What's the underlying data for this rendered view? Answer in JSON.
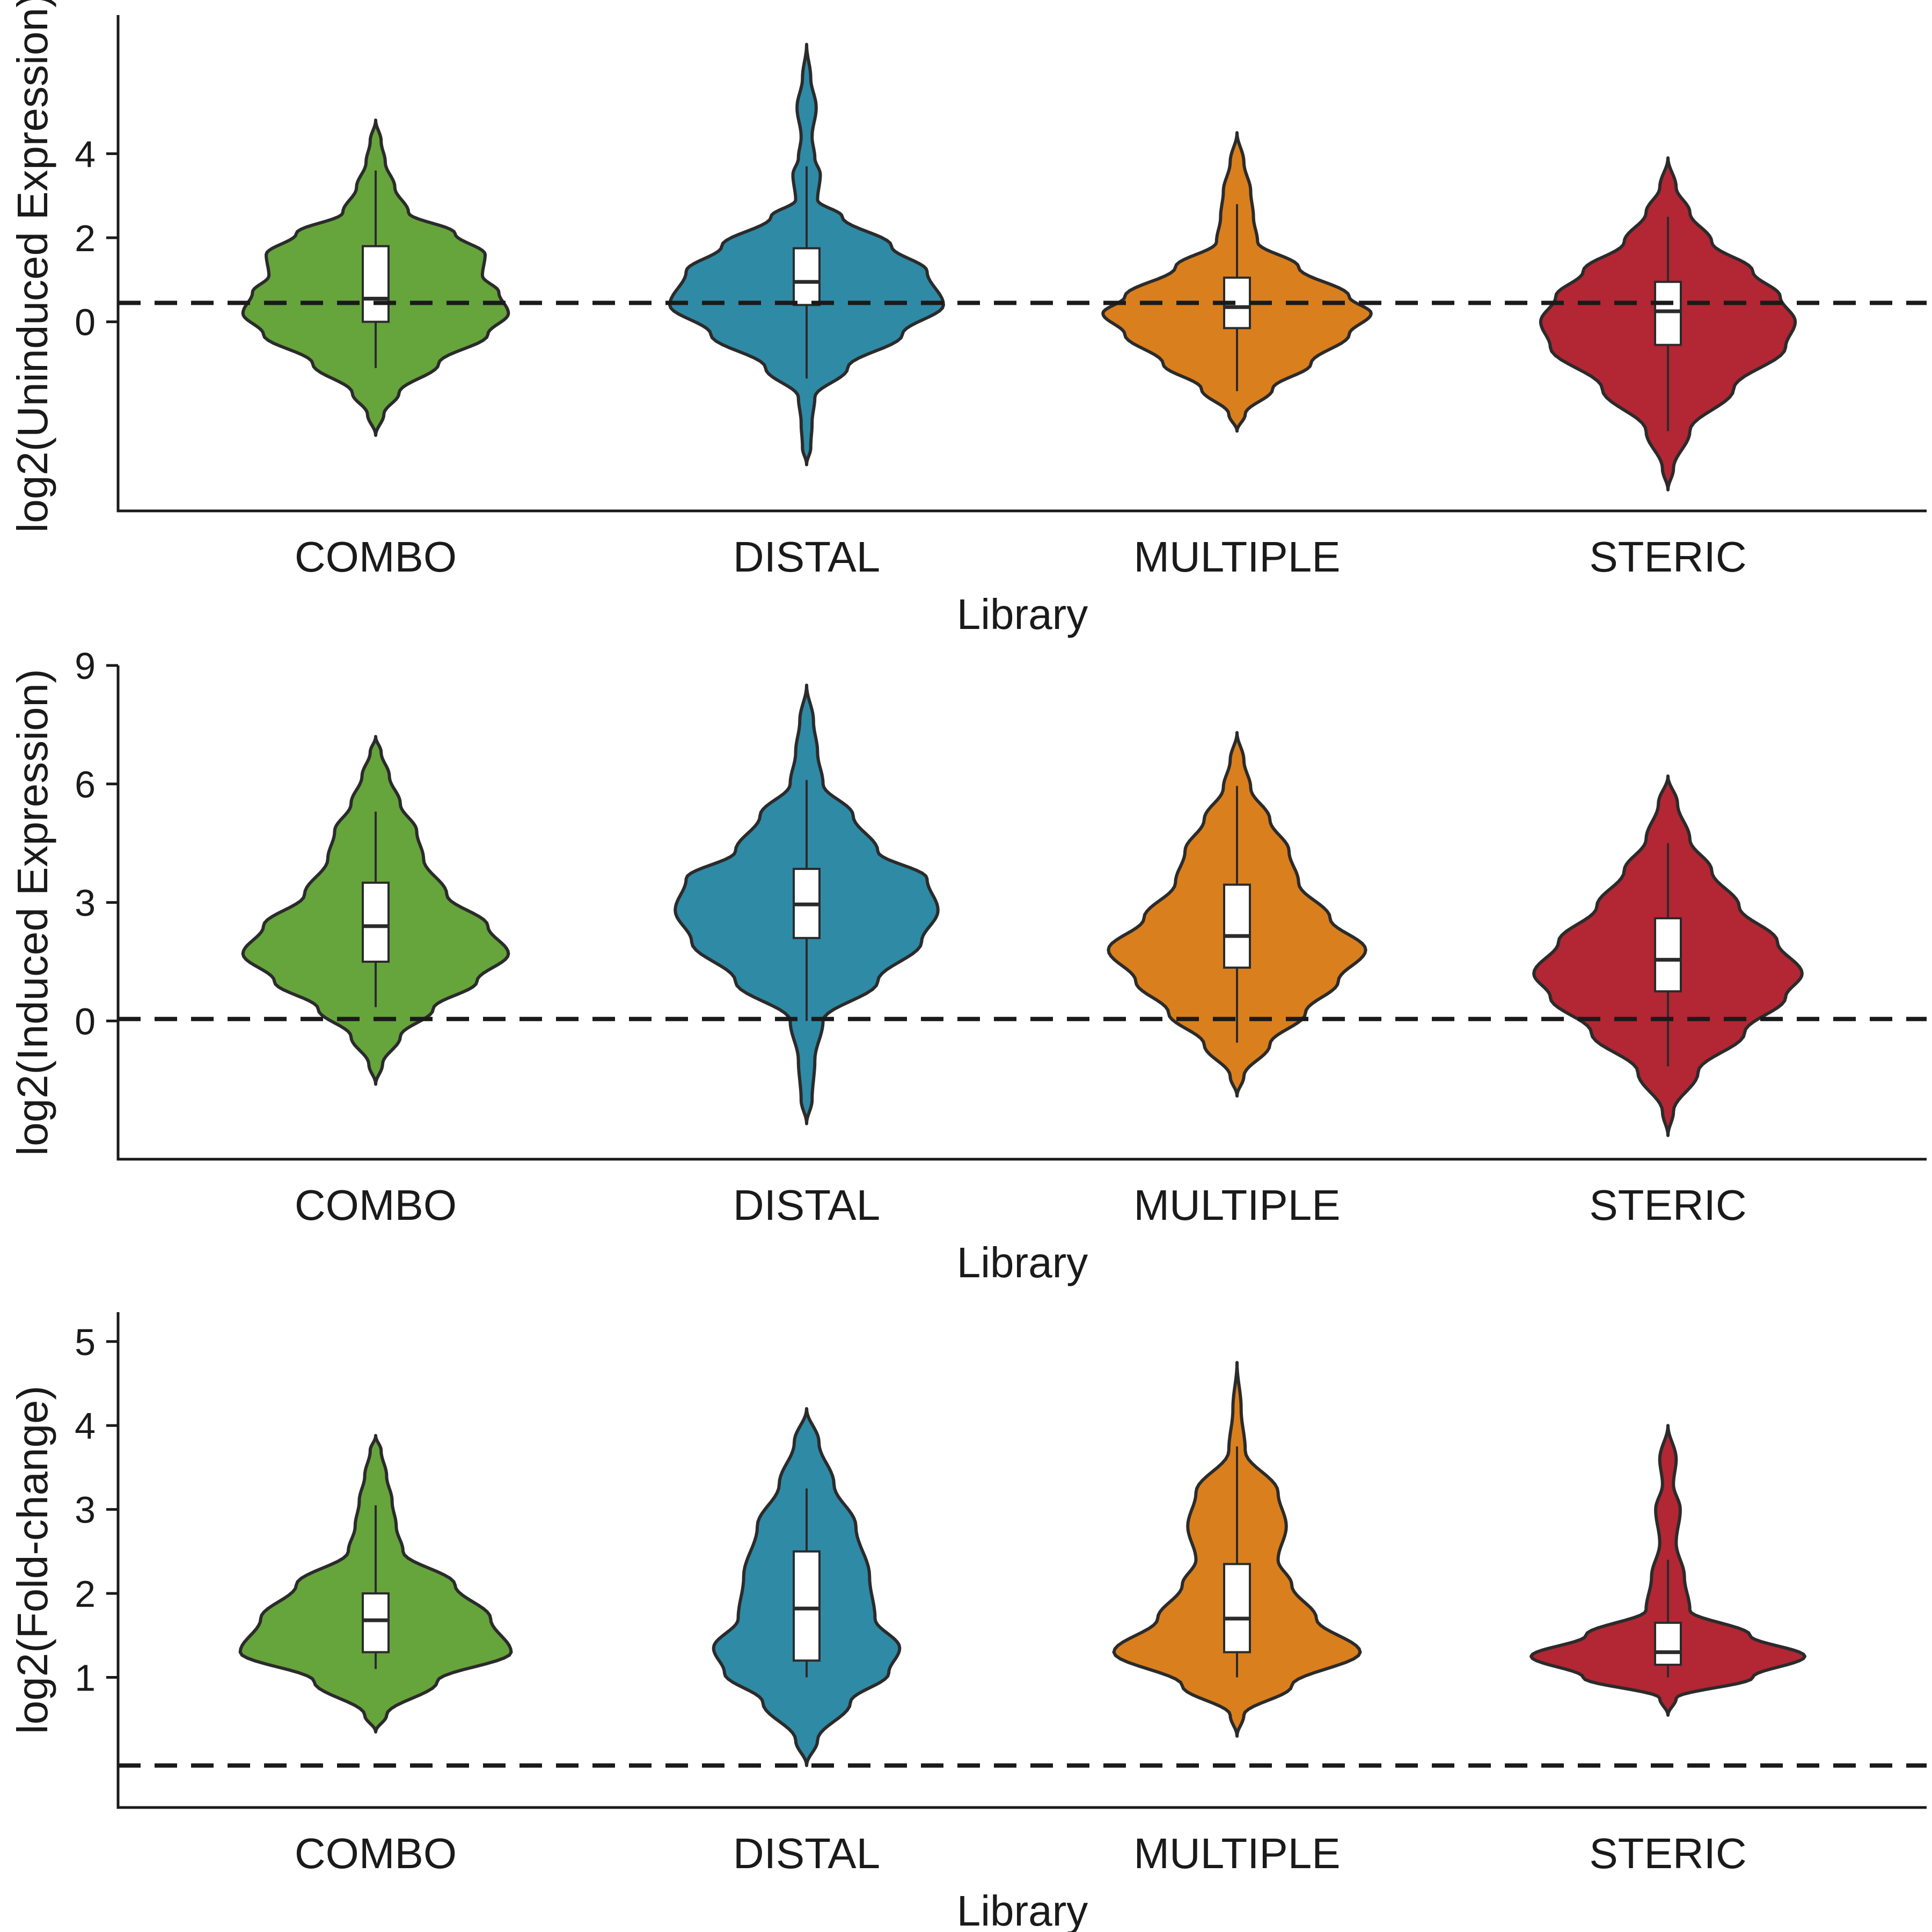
{
  "colors": {
    "COMBO": "#66a43c",
    "DISTAL": "#2f8aa6",
    "MULTIPLE": "#da7f1d",
    "STERIC": "#b32633"
  },
  "chart_data": [
    {
      "type": "violin",
      "xlabel": "Library",
      "ylabel": "log2(Uninduced Expression)",
      "ylim": [
        -4.5,
        7.3
      ],
      "yticks": [
        0,
        2,
        4
      ],
      "ref_line": 0.45,
      "categories": [
        "COMBO",
        "DISTAL",
        "MULTIPLE",
        "STERIC"
      ],
      "groups": [
        {
          "name": "COMBO",
          "box": {
            "whisker_low": -1.1,
            "q1": 0.0,
            "median": 0.55,
            "q3": 1.8,
            "whisker_high": 3.6
          },
          "profile": [
            [
              -2.7,
              0.0
            ],
            [
              -2.2,
              0.06
            ],
            [
              -1.7,
              0.17
            ],
            [
              -1.0,
              0.46
            ],
            [
              -0.3,
              0.82
            ],
            [
              0.2,
              0.97
            ],
            [
              0.7,
              0.9
            ],
            [
              1.1,
              0.78
            ],
            [
              1.6,
              0.8
            ],
            [
              2.1,
              0.58
            ],
            [
              2.6,
              0.24
            ],
            [
              3.2,
              0.14
            ],
            [
              3.8,
              0.07
            ],
            [
              4.3,
              0.04
            ],
            [
              4.8,
              0.0
            ]
          ]
        },
        {
          "name": "DISTAL",
          "box": {
            "whisker_low": -1.35,
            "q1": 0.4,
            "median": 0.95,
            "q3": 1.75,
            "whisker_high": 3.7
          },
          "profile": [
            [
              -3.4,
              0.0
            ],
            [
              -3.0,
              0.03
            ],
            [
              -2.4,
              0.04
            ],
            [
              -1.8,
              0.06
            ],
            [
              -1.1,
              0.3
            ],
            [
              -0.3,
              0.7
            ],
            [
              0.4,
              1.0
            ],
            [
              1.2,
              0.88
            ],
            [
              1.8,
              0.62
            ],
            [
              2.5,
              0.26
            ],
            [
              2.9,
              0.08
            ],
            [
              3.5,
              0.1
            ],
            [
              3.9,
              0.06
            ],
            [
              4.4,
              0.04
            ],
            [
              5.1,
              0.07
            ],
            [
              5.8,
              0.03
            ],
            [
              6.6,
              0.0
            ]
          ]
        },
        {
          "name": "MULTIPLE",
          "box": {
            "whisker_low": -1.65,
            "q1": -0.15,
            "median": 0.35,
            "q3": 1.05,
            "whisker_high": 2.8
          },
          "profile": [
            [
              -2.6,
              0.0
            ],
            [
              -2.2,
              0.06
            ],
            [
              -1.6,
              0.26
            ],
            [
              -1.0,
              0.54
            ],
            [
              -0.3,
              0.82
            ],
            [
              0.2,
              0.98
            ],
            [
              0.6,
              0.82
            ],
            [
              1.3,
              0.45
            ],
            [
              1.9,
              0.15
            ],
            [
              2.5,
              0.12
            ],
            [
              3.1,
              0.1
            ],
            [
              3.8,
              0.05
            ],
            [
              4.5,
              0.0
            ]
          ]
        },
        {
          "name": "STERIC",
          "box": {
            "whisker_low": -2.6,
            "q1": -0.55,
            "median": 0.25,
            "q3": 0.95,
            "whisker_high": 2.5
          },
          "profile": [
            [
              -4.0,
              0.0
            ],
            [
              -3.5,
              0.04
            ],
            [
              -2.6,
              0.16
            ],
            [
              -1.6,
              0.48
            ],
            [
              -0.6,
              0.86
            ],
            [
              0.0,
              0.93
            ],
            [
              0.6,
              0.82
            ],
            [
              1.2,
              0.62
            ],
            [
              1.9,
              0.32
            ],
            [
              2.6,
              0.16
            ],
            [
              3.2,
              0.06
            ],
            [
              3.9,
              0.0
            ]
          ]
        }
      ]
    },
    {
      "type": "violin",
      "xlabel": "Library",
      "ylabel": "log2(Induced Expression)",
      "ylim": [
        -3.5,
        9.0
      ],
      "yticks": [
        0,
        3,
        6,
        9
      ],
      "ref_line": 0.05,
      "categories": [
        "COMBO",
        "DISTAL",
        "MULTIPLE",
        "STERIC"
      ],
      "groups": [
        {
          "name": "COMBO",
          "box": {
            "whisker_low": 0.35,
            "q1": 1.5,
            "median": 2.4,
            "q3": 3.5,
            "whisker_high": 5.3
          },
          "profile": [
            [
              -1.6,
              0.0
            ],
            [
              -1.1,
              0.05
            ],
            [
              -0.4,
              0.18
            ],
            [
              0.3,
              0.42
            ],
            [
              1.0,
              0.74
            ],
            [
              1.7,
              0.97
            ],
            [
              2.4,
              0.82
            ],
            [
              3.2,
              0.52
            ],
            [
              4.1,
              0.35
            ],
            [
              4.8,
              0.3
            ],
            [
              5.5,
              0.18
            ],
            [
              6.2,
              0.1
            ],
            [
              6.8,
              0.04
            ],
            [
              7.2,
              0.0
            ]
          ]
        },
        {
          "name": "DISTAL",
          "box": {
            "whisker_low": 0.0,
            "q1": 2.1,
            "median": 2.95,
            "q3": 3.85,
            "whisker_high": 6.1
          },
          "profile": [
            [
              -2.6,
              0.0
            ],
            [
              -2.0,
              0.04
            ],
            [
              -1.0,
              0.06
            ],
            [
              0.0,
              0.12
            ],
            [
              1.0,
              0.52
            ],
            [
              2.0,
              0.84
            ],
            [
              2.8,
              0.96
            ],
            [
              3.6,
              0.88
            ],
            [
              4.3,
              0.52
            ],
            [
              5.2,
              0.34
            ],
            [
              6.0,
              0.12
            ],
            [
              6.8,
              0.08
            ],
            [
              7.6,
              0.05
            ],
            [
              8.5,
              0.0
            ]
          ]
        },
        {
          "name": "MULTIPLE",
          "box": {
            "whisker_low": -0.55,
            "q1": 1.35,
            "median": 2.15,
            "q3": 3.45,
            "whisker_high": 5.95
          },
          "profile": [
            [
              -1.9,
              0.0
            ],
            [
              -1.4,
              0.05
            ],
            [
              -0.6,
              0.24
            ],
            [
              0.2,
              0.5
            ],
            [
              1.0,
              0.74
            ],
            [
              1.8,
              0.94
            ],
            [
              2.6,
              0.68
            ],
            [
              3.5,
              0.45
            ],
            [
              4.3,
              0.38
            ],
            [
              5.1,
              0.24
            ],
            [
              5.9,
              0.1
            ],
            [
              6.6,
              0.05
            ],
            [
              7.3,
              0.0
            ]
          ]
        },
        {
          "name": "STERIC",
          "box": {
            "whisker_low": -1.15,
            "q1": 0.75,
            "median": 1.55,
            "q3": 2.6,
            "whisker_high": 4.5
          },
          "profile": [
            [
              -2.9,
              0.0
            ],
            [
              -2.3,
              0.04
            ],
            [
              -1.3,
              0.22
            ],
            [
              -0.3,
              0.56
            ],
            [
              0.6,
              0.86
            ],
            [
              1.2,
              0.98
            ],
            [
              2.0,
              0.8
            ],
            [
              2.9,
              0.52
            ],
            [
              3.8,
              0.32
            ],
            [
              4.6,
              0.16
            ],
            [
              5.5,
              0.07
            ],
            [
              6.2,
              0.0
            ]
          ]
        }
      ]
    },
    {
      "type": "violin",
      "xlabel": "Library",
      "ylabel": "log2(Fold-change)",
      "ylim": [
        -0.55,
        5.35
      ],
      "yticks": [
        1,
        2,
        3,
        4,
        5
      ],
      "ref_line": -0.05,
      "categories": [
        "COMBO",
        "DISTAL",
        "MULTIPLE",
        "STERIC"
      ],
      "groups": [
        {
          "name": "COMBO",
          "box": {
            "whisker_low": 1.1,
            "q1": 1.3,
            "median": 1.68,
            "q3": 2.0,
            "whisker_high": 3.05
          },
          "profile": [
            [
              0.35,
              0.0
            ],
            [
              0.55,
              0.08
            ],
            [
              0.95,
              0.45
            ],
            [
              1.3,
              0.99
            ],
            [
              1.7,
              0.84
            ],
            [
              2.1,
              0.58
            ],
            [
              2.5,
              0.2
            ],
            [
              2.8,
              0.15
            ],
            [
              3.1,
              0.12
            ],
            [
              3.4,
              0.08
            ],
            [
              3.7,
              0.04
            ],
            [
              3.88,
              0.0
            ]
          ]
        },
        {
          "name": "DISTAL",
          "box": {
            "whisker_low": 1.0,
            "q1": 1.2,
            "median": 1.82,
            "q3": 2.5,
            "whisker_high": 3.25
          },
          "profile": [
            [
              -0.05,
              0.0
            ],
            [
              0.25,
              0.08
            ],
            [
              0.7,
              0.32
            ],
            [
              1.05,
              0.6
            ],
            [
              1.35,
              0.68
            ],
            [
              1.7,
              0.5
            ],
            [
              2.2,
              0.46
            ],
            [
              2.8,
              0.36
            ],
            [
              3.3,
              0.2
            ],
            [
              3.8,
              0.09
            ],
            [
              4.2,
              0.0
            ]
          ]
        },
        {
          "name": "MULTIPLE",
          "box": {
            "whisker_low": 1.0,
            "q1": 1.3,
            "median": 1.7,
            "q3": 2.35,
            "whisker_high": 3.75
          },
          "profile": [
            [
              0.3,
              0.0
            ],
            [
              0.55,
              0.05
            ],
            [
              0.9,
              0.4
            ],
            [
              1.3,
              0.9
            ],
            [
              1.7,
              0.58
            ],
            [
              2.1,
              0.4
            ],
            [
              2.4,
              0.3
            ],
            [
              2.8,
              0.36
            ],
            [
              3.2,
              0.3
            ],
            [
              3.7,
              0.06
            ],
            [
              4.2,
              0.03
            ],
            [
              4.75,
              0.0
            ]
          ]
        },
        {
          "name": "STERIC",
          "box": {
            "whisker_low": 1.0,
            "q1": 1.15,
            "median": 1.3,
            "q3": 1.65,
            "whisker_high": 2.4
          },
          "profile": [
            [
              0.55,
              0.0
            ],
            [
              0.75,
              0.06
            ],
            [
              1.0,
              0.62
            ],
            [
              1.25,
              1.0
            ],
            [
              1.5,
              0.6
            ],
            [
              1.8,
              0.16
            ],
            [
              2.2,
              0.12
            ],
            [
              2.6,
              0.06
            ],
            [
              3.0,
              0.09
            ],
            [
              3.3,
              0.04
            ],
            [
              3.6,
              0.06
            ],
            [
              4.0,
              0.0
            ]
          ]
        }
      ]
    }
  ]
}
